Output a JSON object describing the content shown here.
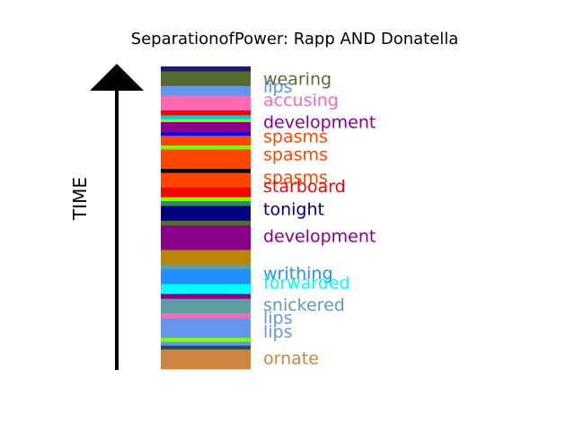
{
  "chart_data": {
    "type": "bar",
    "title": "SeparationofPower: Rapp AND Donatella",
    "ylabel": "TIME",
    "segments": [
      {
        "color": "#1a1a6e",
        "weight": 1.0
      },
      {
        "color": "#556b2f",
        "weight": 3.0
      },
      {
        "color": "#6495ed",
        "weight": 2.0
      },
      {
        "color": "#ff69b4",
        "weight": 3.0
      },
      {
        "color": "#ff0000",
        "weight": 1.0
      },
      {
        "color": "#00ced1",
        "weight": 0.8
      },
      {
        "color": "#7fff00",
        "weight": 0.6
      },
      {
        "color": "#8b008b",
        "weight": 2.0
      },
      {
        "color": "#0000ff",
        "weight": 0.8
      },
      {
        "color": "#ff4500",
        "weight": 2.0
      },
      {
        "color": "#7fff00",
        "weight": 0.8
      },
      {
        "color": "#ff4500",
        "weight": 4.0
      },
      {
        "color": "#000000",
        "weight": 0.8
      },
      {
        "color": "#ff4500",
        "weight": 3.0
      },
      {
        "color": "#ff0000",
        "weight": 2.0
      },
      {
        "color": "#7fff00",
        "weight": 0.8
      },
      {
        "color": "#2e8b57",
        "weight": 1.0
      },
      {
        "color": "#000080",
        "weight": 3.0
      },
      {
        "color": "#556b2f",
        "weight": 1.0
      },
      {
        "color": "#8b008b",
        "weight": 5.0
      },
      {
        "color": "#b8860b",
        "weight": 3.0
      },
      {
        "color": "#5f9ea0",
        "weight": 1.0
      },
      {
        "color": "#1e90ff",
        "weight": 3.0
      },
      {
        "color": "#00ffff",
        "weight": 2.0
      },
      {
        "color": "#8b008b",
        "weight": 1.0
      },
      {
        "color": "#5f9ea0",
        "weight": 3.0
      },
      {
        "color": "#ff69b4",
        "weight": 1.0
      },
      {
        "color": "#6495ed",
        "weight": 2.0
      },
      {
        "color": "#6495ed",
        "weight": 2.0
      },
      {
        "color": "#7fff00",
        "weight": 0.8
      },
      {
        "color": "#6495ed",
        "weight": 0.8
      },
      {
        "color": "#2f4f4f",
        "weight": 0.8
      },
      {
        "color": "#cd853f",
        "weight": 4.0
      }
    ],
    "labels": [
      {
        "text": "wearing",
        "color": "#556b2f",
        "pos": 0.04
      },
      {
        "text": "lips",
        "color": "#6495ed",
        "pos": 0.066
      },
      {
        "text": "accusing",
        "color": "#ff69b4",
        "pos": 0.11
      },
      {
        "text": "development",
        "color": "#8b008b",
        "pos": 0.183
      },
      {
        "text": "spasms",
        "color": "#ff4500",
        "pos": 0.23
      },
      {
        "text": "spasms",
        "color": "#ff4500",
        "pos": 0.29
      },
      {
        "text": "spasms",
        "color": "#ff4500",
        "pos": 0.365
      },
      {
        "text": "starboard",
        "color": "#ff0000",
        "pos": 0.395
      },
      {
        "text": "tonight",
        "color": "#000080",
        "pos": 0.47
      },
      {
        "text": "development",
        "color": "#8b008b",
        "pos": 0.56
      },
      {
        "text": "writhing",
        "color": "#1e90ff",
        "pos": 0.683
      },
      {
        "text": "forwarded",
        "color": "#00ffff",
        "pos": 0.713
      },
      {
        "text": "snickered",
        "color": "#5f9ea0",
        "pos": 0.786
      },
      {
        "text": "lips",
        "color": "#6495ed",
        "pos": 0.83
      },
      {
        "text": "lips",
        "color": "#6495ed",
        "pos": 0.876
      },
      {
        "text": "ornate",
        "color": "#cd853f",
        "pos": 0.963
      }
    ]
  }
}
